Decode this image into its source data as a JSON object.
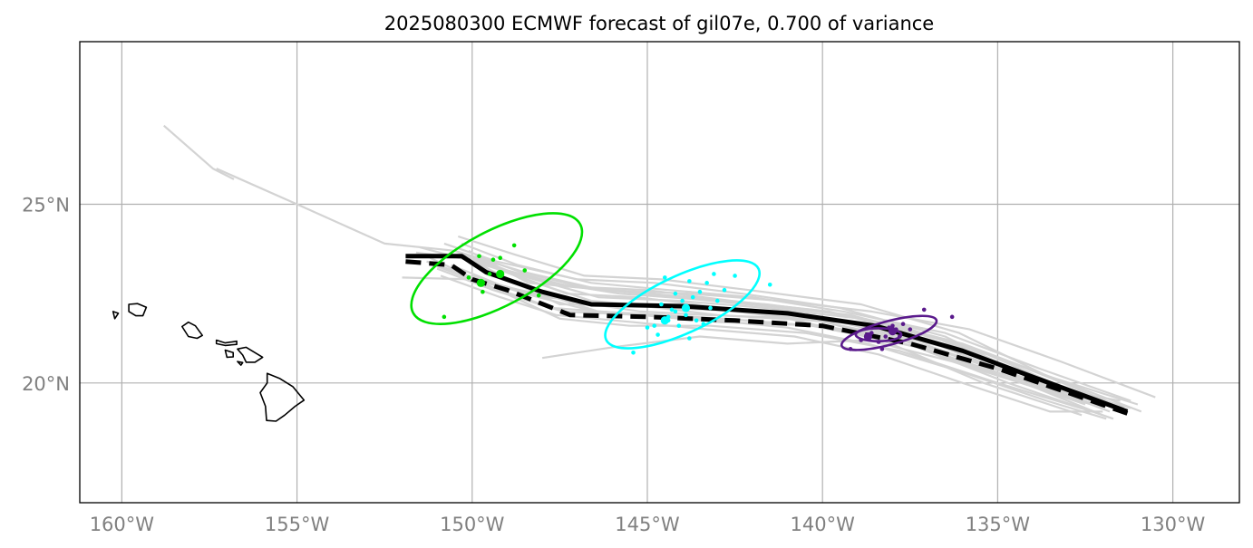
{
  "title": "2025080300 ECMWF forecast of gil07e, 0.700 of variance",
  "map": {
    "lon_range": [
      -161.2,
      -128.1
    ],
    "lat_range": [
      16.65,
      29.55
    ],
    "grid": true,
    "lon_ticks": [
      {
        "value": -160,
        "label": "160°W"
      },
      {
        "value": -155,
        "label": "155°W"
      },
      {
        "value": -150,
        "label": "150°W"
      },
      {
        "value": -145,
        "label": "145°W"
      },
      {
        "value": -140,
        "label": "140°W"
      },
      {
        "value": -135,
        "label": "135°W"
      },
      {
        "value": -130,
        "label": "130°W"
      }
    ],
    "lat_ticks": [
      {
        "value": 20,
        "label": "20°N"
      },
      {
        "value": 25,
        "label": "25°N"
      }
    ],
    "colors": {
      "ensemble": "#d3d3d3",
      "deterministic": "#000000",
      "ensemble_mean": "#000000",
      "day1": "#00e000",
      "day2": "#00ffff",
      "day3": "#5a1a8c"
    }
  },
  "islands": [
    {
      "name": "hawaii",
      "points": [
        [
          -155.85,
          20.27
        ],
        [
          -155.5,
          20.13
        ],
        [
          -155.12,
          19.9
        ],
        [
          -154.8,
          19.52
        ],
        [
          -155.05,
          19.35
        ],
        [
          -155.35,
          19.1
        ],
        [
          -155.6,
          18.93
        ],
        [
          -155.87,
          18.95
        ],
        [
          -155.9,
          19.35
        ],
        [
          -156.05,
          19.73
        ],
        [
          -155.85,
          20.0
        ],
        [
          -155.85,
          20.27
        ]
      ]
    },
    {
      "name": "maui",
      "points": [
        [
          -156.7,
          20.95
        ],
        [
          -156.45,
          21.0
        ],
        [
          -156.2,
          20.85
        ],
        [
          -155.98,
          20.72
        ],
        [
          -156.2,
          20.58
        ],
        [
          -156.45,
          20.58
        ],
        [
          -156.55,
          20.78
        ],
        [
          -156.7,
          20.95
        ]
      ]
    },
    {
      "name": "kahoolawe",
      "points": [
        [
          -156.7,
          20.6
        ],
        [
          -156.55,
          20.57
        ],
        [
          -156.6,
          20.5
        ],
        [
          -156.7,
          20.6
        ]
      ]
    },
    {
      "name": "lanai",
      "points": [
        [
          -157.05,
          20.92
        ],
        [
          -156.82,
          20.85
        ],
        [
          -156.82,
          20.73
        ],
        [
          -157.0,
          20.72
        ],
        [
          -157.05,
          20.92
        ]
      ]
    },
    {
      "name": "molokai",
      "points": [
        [
          -157.3,
          21.2
        ],
        [
          -157.05,
          21.12
        ],
        [
          -156.72,
          21.17
        ],
        [
          -156.72,
          21.08
        ],
        [
          -157.05,
          21.05
        ],
        [
          -157.3,
          21.1
        ],
        [
          -157.3,
          21.2
        ]
      ]
    },
    {
      "name": "oahu",
      "points": [
        [
          -158.28,
          21.58
        ],
        [
          -158.1,
          21.7
        ],
        [
          -157.9,
          21.6
        ],
        [
          -157.7,
          21.33
        ],
        [
          -157.85,
          21.25
        ],
        [
          -158.1,
          21.3
        ],
        [
          -158.28,
          21.58
        ]
      ]
    },
    {
      "name": "kauai",
      "points": [
        [
          -159.8,
          22.2
        ],
        [
          -159.55,
          22.22
        ],
        [
          -159.3,
          22.12
        ],
        [
          -159.4,
          21.88
        ],
        [
          -159.6,
          21.88
        ],
        [
          -159.8,
          22.0
        ],
        [
          -159.8,
          22.2
        ]
      ]
    },
    {
      "name": "niihau",
      "points": [
        [
          -160.25,
          22.0
        ],
        [
          -160.1,
          21.95
        ],
        [
          -160.2,
          21.8
        ],
        [
          -160.25,
          22.0
        ]
      ]
    }
  ],
  "ensemble_tracks": [
    [
      [
        -150.1,
        23.5
      ],
      [
        -149.0,
        22.9
      ],
      [
        -147.5,
        22.2
      ],
      [
        -145.5,
        22.2
      ],
      [
        -143.0,
        21.9
      ],
      [
        -139.5,
        21.7
      ],
      [
        -136.5,
        21.0
      ],
      [
        -134.0,
        20.0
      ],
      [
        -131.8,
        19.4
      ]
    ],
    [
      [
        -150.5,
        23.7
      ],
      [
        -149.0,
        23.1
      ],
      [
        -147.3,
        22.5
      ],
      [
        -145.3,
        22.4
      ],
      [
        -142.8,
        22.1
      ],
      [
        -139.8,
        21.8
      ],
      [
        -136.8,
        21.1
      ],
      [
        -134.3,
        20.1
      ],
      [
        -131.6,
        19.3
      ]
    ],
    [
      [
        -150.8,
        23.9
      ],
      [
        -149.3,
        23.4
      ],
      [
        -147.0,
        22.9
      ],
      [
        -144.8,
        22.8
      ],
      [
        -142.3,
        22.5
      ],
      [
        -139.5,
        22.1
      ],
      [
        -136.5,
        21.3
      ],
      [
        -133.8,
        20.0
      ],
      [
        -131.3,
        19.2
      ]
    ],
    [
      [
        -151.5,
        23.8
      ],
      [
        -149.6,
        23.3
      ],
      [
        -147.2,
        22.7
      ],
      [
        -145.0,
        22.6
      ],
      [
        -142.6,
        22.3
      ],
      [
        -139.8,
        22.0
      ],
      [
        -136.6,
        21.2
      ],
      [
        -133.8,
        19.9
      ],
      [
        -131.5,
        19.5
      ]
    ],
    [
      [
        -150.4,
        24.1
      ],
      [
        -148.8,
        23.6
      ],
      [
        -146.8,
        23.0
      ],
      [
        -144.6,
        22.9
      ],
      [
        -142.1,
        22.6
      ],
      [
        -138.9,
        22.2
      ],
      [
        -136.1,
        21.4
      ],
      [
        -133.6,
        20.2
      ],
      [
        -131.0,
        19.4
      ]
    ],
    [
      [
        -151.0,
        23.2
      ],
      [
        -149.4,
        22.6
      ],
      [
        -147.4,
        22.0
      ],
      [
        -145.2,
        21.9
      ],
      [
        -142.9,
        21.7
      ],
      [
        -140.0,
        21.6
      ],
      [
        -137.3,
        21.0
      ],
      [
        -134.6,
        20.1
      ],
      [
        -132.0,
        19.3
      ]
    ],
    [
      [
        -151.2,
        23.5
      ],
      [
        -149.7,
        22.8
      ],
      [
        -147.5,
        21.8
      ],
      [
        -145.5,
        21.6
      ],
      [
        -143.2,
        21.6
      ],
      [
        -140.5,
        21.4
      ],
      [
        -137.8,
        20.9
      ],
      [
        -135.0,
        20.0
      ],
      [
        -132.3,
        19.2
      ]
    ],
    [
      [
        -150.2,
        23.6
      ],
      [
        -148.6,
        23.0
      ],
      [
        -146.4,
        22.4
      ],
      [
        -144.1,
        22.3
      ],
      [
        -141.6,
        22.1
      ],
      [
        -138.9,
        21.8
      ],
      [
        -136.0,
        21.1
      ],
      [
        -133.3,
        20.1
      ],
      [
        -130.9,
        19.2
      ]
    ],
    [
      [
        -150.6,
        23.3
      ],
      [
        -149.1,
        22.7
      ],
      [
        -147.2,
        22.3
      ],
      [
        -145.2,
        22.0
      ],
      [
        -143.3,
        21.9
      ],
      [
        -140.4,
        21.8
      ],
      [
        -137.6,
        21.2
      ],
      [
        -134.8,
        20.3
      ],
      [
        -132.1,
        19.6
      ]
    ],
    [
      [
        -151.3,
        23.4
      ],
      [
        -149.8,
        22.9
      ],
      [
        -147.9,
        22.4
      ],
      [
        -145.7,
        22.2
      ],
      [
        -143.6,
        22.1
      ],
      [
        -140.9,
        21.9
      ],
      [
        -138.0,
        21.3
      ],
      [
        -135.2,
        20.3
      ],
      [
        -132.5,
        19.4
      ]
    ],
    [
      [
        -152.0,
        22.95
      ],
      [
        -150.0,
        22.9
      ],
      [
        -148.2,
        22.45
      ],
      [
        -146.0,
        22.2
      ],
      [
        -143.8,
        22.15
      ],
      [
        -141.2,
        21.85
      ],
      [
        -138.3,
        21.2
      ],
      [
        -135.4,
        20.0
      ],
      [
        -132.6,
        19.1
      ]
    ],
    [
      [
        -150.3,
        23.9
      ],
      [
        -148.7,
        23.3
      ],
      [
        -146.6,
        22.8
      ],
      [
        -144.4,
        22.6
      ],
      [
        -142.0,
        22.4
      ],
      [
        -139.4,
        22.0
      ],
      [
        -136.5,
        21.4
      ],
      [
        -133.8,
        20.4
      ],
      [
        -131.2,
        19.5
      ]
    ],
    [
      [
        -150.9,
        23.0
      ],
      [
        -149.2,
        22.4
      ],
      [
        -147.6,
        21.9
      ],
      [
        -145.4,
        21.7
      ],
      [
        -143.3,
        21.5
      ],
      [
        -140.8,
        21.3
      ],
      [
        -138.4,
        20.8
      ],
      [
        -136.0,
        20.0
      ],
      [
        -133.5,
        19.2
      ],
      [
        -132.0,
        19.2
      ]
    ],
    [
      [
        -148.0,
        20.7
      ],
      [
        -146.0,
        21.0
      ],
      [
        -143.5,
        21.3
      ],
      [
        -141.0,
        21.1
      ],
      [
        -138.7,
        21.2
      ],
      [
        -136.3,
        20.6
      ],
      [
        -134.0,
        19.9
      ],
      [
        -132.0,
        19.1
      ]
    ],
    [
      [
        -151.6,
        23.65
      ],
      [
        -150.0,
        23.45
      ],
      [
        -148.5,
        22.9
      ],
      [
        -146.6,
        22.3
      ],
      [
        -144.3,
        22.1
      ],
      [
        -142.1,
        22.0
      ],
      [
        -139.9,
        21.7
      ],
      [
        -137.3,
        21.0
      ],
      [
        -134.7,
        20.0
      ],
      [
        -131.7,
        19.0
      ]
    ],
    [
      [
        -150.1,
        23.7
      ],
      [
        -148.4,
        22.8
      ],
      [
        -146.2,
        22.6
      ],
      [
        -143.8,
        22.5
      ],
      [
        -141.2,
        22.3
      ],
      [
        -138.6,
        22.0
      ],
      [
        -135.8,
        21.5
      ],
      [
        -133.2,
        20.6
      ],
      [
        -130.5,
        19.6
      ]
    ],
    [
      [
        -150.7,
        23.6
      ],
      [
        -149.3,
        23.2
      ],
      [
        -147.7,
        22.8
      ],
      [
        -145.8,
        22.5
      ],
      [
        -143.7,
        22.35
      ],
      [
        -141.6,
        22.15
      ],
      [
        -139.2,
        21.9
      ],
      [
        -136.4,
        21.2
      ],
      [
        -133.9,
        20.3
      ],
      [
        -131.4,
        19.3
      ]
    ],
    [
      [
        -151.1,
        23.3
      ],
      [
        -149.5,
        22.7
      ],
      [
        -147.7,
        22.1
      ],
      [
        -145.6,
        21.95
      ],
      [
        -143.6,
        21.8
      ],
      [
        -141.0,
        21.55
      ],
      [
        -138.7,
        21.1
      ],
      [
        -136.0,
        20.3
      ],
      [
        -133.6,
        19.5
      ],
      [
        -131.9,
        19.0
      ]
    ],
    [
      [
        -150.0,
        23.4
      ],
      [
        -148.3,
        22.6
      ],
      [
        -146.4,
        22.0
      ],
      [
        -144.3,
        21.85
      ],
      [
        -142.1,
        21.75
      ],
      [
        -139.7,
        21.55
      ],
      [
        -137.0,
        21.05
      ],
      [
        -134.5,
        20.2
      ],
      [
        -131.8,
        19.2
      ]
    ],
    [
      [
        -149.9,
        23.55
      ],
      [
        -148.6,
        23.1
      ],
      [
        -146.9,
        22.7
      ],
      [
        -144.9,
        22.5
      ],
      [
        -142.7,
        22.3
      ],
      [
        -140.3,
        22.05
      ],
      [
        -137.8,
        21.6
      ],
      [
        -135.3,
        20.8
      ],
      [
        -132.7,
        19.7
      ],
      [
        -131.2,
        19.3
      ]
    ],
    [
      [
        -157.3,
        26.0
      ],
      [
        -155.0,
        25.0
      ],
      [
        -152.5,
        23.9
      ],
      [
        -150.5,
        23.7
      ],
      [
        -148.5,
        23.1
      ],
      [
        -146.3,
        22.6
      ],
      [
        -144.0,
        22.4
      ],
      [
        -141.6,
        22.2
      ],
      [
        -139.2,
        21.9
      ],
      [
        -136.6,
        21.2
      ],
      [
        -134.0,
        20.2
      ],
      [
        -131.4,
        19.2
      ]
    ],
    [
      [
        -158.8,
        27.2
      ],
      [
        -157.4,
        26.0
      ],
      [
        -156.8,
        25.7
      ]
    ],
    [
      [
        -150.0,
        23.0
      ],
      [
        -148.5,
        22.5
      ],
      [
        -146.5,
        22.0
      ],
      [
        -144.5,
        21.9
      ],
      [
        -142.8,
        21.8
      ],
      [
        -140.3,
        21.6
      ],
      [
        -137.2,
        21.0
      ],
      [
        -134.4,
        20.1
      ],
      [
        -132.2,
        19.4
      ]
    ]
  ],
  "ensemble_mean_track": [
    [
      -151.9,
      23.4
    ],
    [
      -150.6,
      23.3
    ],
    [
      -150.0,
      22.9
    ],
    [
      -149.0,
      22.6
    ],
    [
      -147.2,
      21.9
    ],
    [
      -145.0,
      21.85
    ],
    [
      -142.5,
      21.75
    ],
    [
      -140.0,
      21.6
    ],
    [
      -137.5,
      21.1
    ],
    [
      -135.0,
      20.4
    ],
    [
      -133.2,
      19.8
    ],
    [
      -131.3,
      19.15
    ]
  ],
  "deterministic_track": [
    [
      -151.9,
      23.55
    ],
    [
      -150.3,
      23.55
    ],
    [
      -149.6,
      23.1
    ],
    [
      -148.0,
      22.55
    ],
    [
      -146.6,
      22.2
    ],
    [
      -144.0,
      22.15
    ],
    [
      -141.0,
      21.95
    ],
    [
      -138.5,
      21.6
    ],
    [
      -136.0,
      20.9
    ],
    [
      -133.8,
      20.1
    ],
    [
      -131.3,
      19.2
    ]
  ],
  "deterministic_points": [
    [
      -149.2,
      23.05
    ],
    [
      -143.9,
      22.1
    ],
    [
      -138.0,
      21.45
    ]
  ],
  "mean_points": [
    [
      -149.75,
      22.8
    ],
    [
      -144.5,
      21.75
    ],
    [
      -138.7,
      21.3
    ]
  ],
  "ellipses": [
    {
      "name": "day1",
      "center": [
        -149.3,
        23.2
      ],
      "half_width_deg": 2.7,
      "half_height_deg": 1.05,
      "angle_deg": -28
    },
    {
      "name": "day2",
      "center": [
        -144.0,
        22.2
      ],
      "half_width_deg": 2.4,
      "half_height_deg": 0.8,
      "angle_deg": -25
    },
    {
      "name": "day3",
      "center": [
        -138.1,
        21.4
      ],
      "half_width_deg": 1.4,
      "half_height_deg": 0.33,
      "angle_deg": -15
    },
    {
      "name": "day3_inner",
      "center": [
        -138.4,
        21.35
      ],
      "half_width_deg": 0.65,
      "half_height_deg": 0.18,
      "angle_deg": 0
    }
  ],
  "member_points": {
    "day1": [
      [
        -148.8,
        23.85
      ],
      [
        -149.4,
        23.45
      ],
      [
        -149.2,
        23.5
      ],
      [
        -149.8,
        23.55
      ],
      [
        -148.5,
        23.15
      ],
      [
        -149.7,
        22.55
      ],
      [
        -148.1,
        22.45
      ],
      [
        -150.8,
        21.85
      ],
      [
        -150.1,
        22.95
      ],
      [
        -149.5,
        23.05
      ]
    ],
    "day2": [
      [
        -144.5,
        22.95
      ],
      [
        -143.8,
        22.85
      ],
      [
        -143.1,
        23.05
      ],
      [
        -142.5,
        23.0
      ],
      [
        -141.5,
        22.75
      ],
      [
        -143.3,
        22.8
      ],
      [
        -144.2,
        22.5
      ],
      [
        -143.5,
        22.55
      ],
      [
        -142.8,
        22.6
      ],
      [
        -143.0,
        22.3
      ],
      [
        -144.6,
        22.2
      ],
      [
        -144.0,
        22.3
      ],
      [
        -143.7,
        22.4
      ],
      [
        -143.2,
        22.1
      ],
      [
        -144.4,
        21.85
      ],
      [
        -144.8,
        21.6
      ],
      [
        -145.0,
        21.55
      ],
      [
        -144.1,
        21.6
      ],
      [
        -143.4,
        21.65
      ],
      [
        -143.9,
        21.9
      ],
      [
        -144.3,
        22.05
      ],
      [
        -143.6,
        21.75
      ],
      [
        -145.4,
        20.85
      ],
      [
        -144.7,
        21.35
      ],
      [
        -143.8,
        21.25
      ],
      [
        -144.4,
        21.75
      ],
      [
        -144.2,
        22.0
      ],
      [
        -143.9,
        22.05
      ]
    ],
    "day3": [
      [
        -137.1,
        22.05
      ],
      [
        -136.3,
        21.85
      ],
      [
        -137.7,
        21.65
      ],
      [
        -138.1,
        21.55
      ],
      [
        -137.9,
        21.5
      ],
      [
        -138.6,
        21.4
      ],
      [
        -138.2,
        21.3
      ],
      [
        -138.4,
        21.15
      ],
      [
        -138.9,
        21.2
      ],
      [
        -139.2,
        20.95
      ],
      [
        -138.3,
        20.95
      ],
      [
        -137.5,
        21.5
      ],
      [
        -137.8,
        21.3
      ],
      [
        -138.0,
        21.6
      ]
    ]
  }
}
